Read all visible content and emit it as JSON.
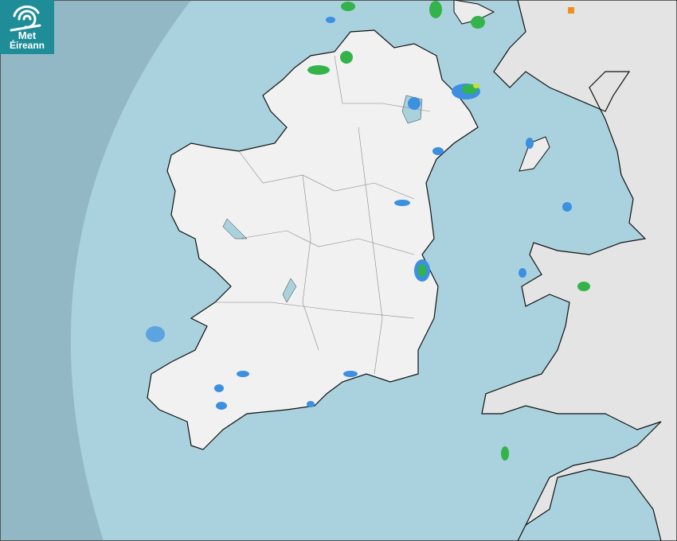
{
  "logo": {
    "line1": "Met",
    "line2": "Éireann"
  },
  "colors": {
    "sea_outside_coverage": "#93b8c5",
    "sea_in_coverage": "#a9d2de",
    "land": "#f2f2f2",
    "logo_bg": "#1f8d98",
    "rain_light": "#3d8fe0",
    "rain_moderate": "#34b34a",
    "rain_heavy": "#c8e020",
    "rain_intense": "#f0901a"
  },
  "map_type": "precipitation-radar"
}
